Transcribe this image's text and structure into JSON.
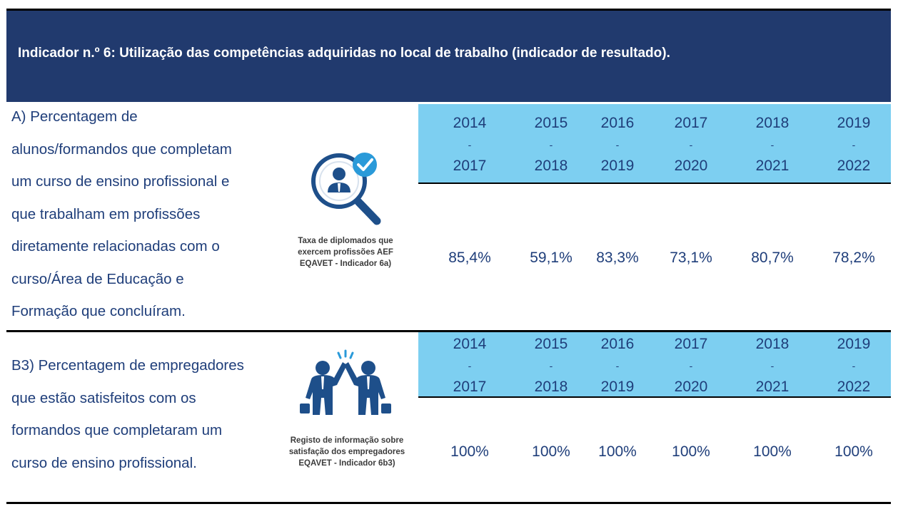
{
  "header": {
    "title": "Indicador n.º 6: Utilização das competências adquiridas no local de trabalho (indicador de resultado)."
  },
  "section_a": {
    "description_lines": [
      "A) Percentagem de",
      "alunos/formandos que completam",
      "um curso de ensino profissional e",
      "que trabalham em profissões",
      "diretamente relacionadas com o",
      "curso/Área de Educação e",
      "Formação que concluíram."
    ],
    "icon_name": "magnifier-person-check-icon",
    "icon_caption_lines": [
      "Taxa de diplomados que",
      "exercem profissões AEF",
      "EQAVET - Indicador 6a)"
    ],
    "periods": [
      {
        "start": "2014",
        "sep": "-",
        "end": "2017"
      },
      {
        "start": "2015",
        "sep": "-",
        "end": "2018"
      },
      {
        "start": "2016",
        "sep": "-",
        "end": "2019"
      },
      {
        "start": "2017",
        "sep": "-",
        "end": "2020"
      },
      {
        "start": "2018",
        "sep": "-",
        "end": "2021"
      },
      {
        "start": "2019",
        "sep": "-",
        "end": "2022"
      }
    ],
    "values": [
      "85,4%",
      "59,1%",
      "83,3%",
      "73,1%",
      "80,7%",
      "78,2%"
    ]
  },
  "section_b": {
    "description_lines": [
      "B3) Percentagem de empregadores",
      "que estão satisfeitos com os",
      "formandos que completaram um",
      "curso de ensino profissional."
    ],
    "icon_name": "high-five-businessmen-icon",
    "icon_caption_lines": [
      "Registo de informação sobre",
      "satisfação dos empregadores",
      "EQAVET - Indicador 6b3)"
    ],
    "periods": [
      {
        "start": "2014",
        "sep": "-",
        "end": "2017"
      },
      {
        "start": "2015",
        "sep": "-",
        "end": "2018"
      },
      {
        "start": "2016",
        "sep": "-",
        "end": "2019"
      },
      {
        "start": "2017",
        "sep": "-",
        "end": "2020"
      },
      {
        "start": "2018",
        "sep": "-",
        "end": "2021"
      },
      {
        "start": "2019",
        "sep": "-",
        "end": "2022"
      }
    ],
    "values": [
      "100%",
      "100%",
      "100%",
      "100%",
      "100%",
      "100%"
    ]
  },
  "colors": {
    "header_bg": "#213a6e",
    "header_text": "#ffffff",
    "body_text": "#1f3e7a",
    "year_band": "#7dcff1",
    "icon_blue": "#1e4f8a",
    "check_blue": "#2a9ad9"
  }
}
